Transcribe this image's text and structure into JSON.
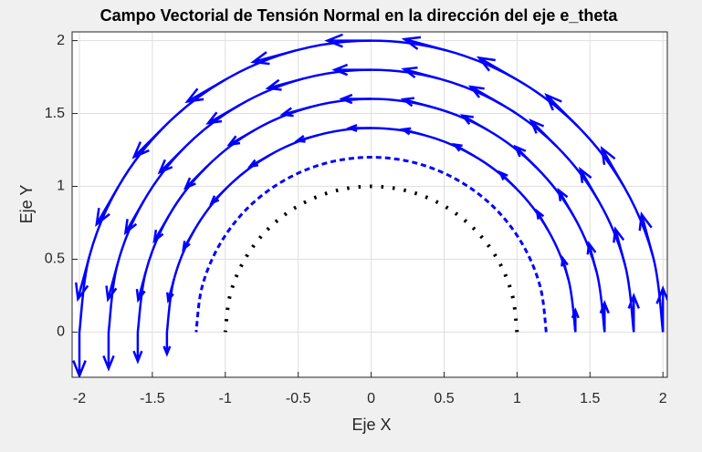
{
  "chart_data": {
    "type": "quiver",
    "title": "Campo Vectorial de Tensión Normal en la dirección del eje e_theta",
    "xlabel": "Eje X",
    "ylabel": "Eje Y",
    "xlim": [
      -2.05,
      2.03
    ],
    "ylim": [
      -0.31,
      2.06
    ],
    "xticks": [
      -2,
      -1.5,
      -1,
      -0.5,
      0,
      0.5,
      1,
      1.5,
      2
    ],
    "yticks": [
      0,
      0.5,
      1,
      1.5,
      2
    ],
    "grid": true,
    "series": [
      {
        "color": "#000000",
        "style": "dotted",
        "x": [
          1,
          0.966,
          0.866,
          0.707,
          0.5,
          0.259,
          0,
          -0.259,
          -0.5,
          -0.707,
          -0.866,
          -0.966,
          -1
        ],
        "y": [
          0,
          0.259,
          0.5,
          0.707,
          0.866,
          0.966,
          1,
          0.966,
          0.866,
          0.707,
          0.5,
          0.259,
          0
        ]
      },
      {
        "color": "#0000ff",
        "style": "dashed",
        "x": [
          1.2,
          1.159,
          1.039,
          0.849,
          0.6,
          0.311,
          0,
          -0.311,
          -0.6,
          -0.849,
          -1.039,
          -1.159,
          -1.2
        ],
        "y": [
          0,
          0.311,
          0.6,
          0.849,
          1.039,
          1.159,
          1.2,
          1.159,
          1.039,
          0.849,
          0.6,
          0.311,
          0
        ]
      },
      {
        "color": "#0000ff",
        "style": "solid",
        "x": [
          1.4,
          1.352,
          1.212,
          0.99,
          0.7,
          0.362,
          0,
          -0.362,
          -0.7,
          -0.99,
          -1.212,
          -1.352,
          -1.4
        ],
        "y": [
          0,
          0.362,
          0.7,
          0.99,
          1.212,
          1.352,
          1.4,
          1.352,
          1.212,
          0.99,
          0.7,
          0.362,
          0
        ],
        "u": [
          0,
          -0.039,
          -0.075,
          -0.106,
          -0.13,
          -0.145,
          -0.15,
          -0.145,
          -0.13,
          -0.106,
          -0.075,
          -0.039,
          0
        ],
        "v": [
          0.15,
          0.145,
          0.13,
          0.106,
          0.075,
          0.039,
          0,
          -0.039,
          -0.075,
          -0.106,
          -0.13,
          -0.145,
          -0.15
        ]
      },
      {
        "color": "#0000ff",
        "style": "solid",
        "x": [
          1.6,
          1.545,
          1.386,
          1.131,
          0.8,
          0.414,
          0,
          -0.414,
          -0.8,
          -1.131,
          -1.386,
          -1.545,
          -1.6
        ],
        "y": [
          0,
          0.414,
          0.8,
          1.131,
          1.386,
          1.545,
          1.6,
          1.545,
          1.386,
          1.131,
          0.8,
          0.414,
          0
        ],
        "u": [
          0,
          -0.052,
          -0.1,
          -0.141,
          -0.173,
          -0.193,
          -0.2,
          -0.193,
          -0.173,
          -0.141,
          -0.1,
          -0.052,
          0
        ],
        "v": [
          0.2,
          0.193,
          0.173,
          0.141,
          0.1,
          0.052,
          0,
          -0.052,
          -0.1,
          -0.141,
          -0.173,
          -0.193,
          -0.2
        ]
      },
      {
        "color": "#0000ff",
        "style": "solid",
        "x": [
          1.8,
          1.739,
          1.559,
          1.273,
          0.9,
          0.466,
          0,
          -0.466,
          -0.9,
          -1.273,
          -1.559,
          -1.739,
          -1.8
        ],
        "y": [
          0,
          0.466,
          0.9,
          1.273,
          1.559,
          1.739,
          1.8,
          1.739,
          1.559,
          1.273,
          0.9,
          0.466,
          0
        ],
        "u": [
          0,
          -0.065,
          -0.125,
          -0.177,
          -0.217,
          -0.241,
          -0.25,
          -0.241,
          -0.217,
          -0.177,
          -0.125,
          -0.065,
          0
        ],
        "v": [
          0.25,
          0.241,
          0.217,
          0.177,
          0.125,
          0.065,
          0,
          -0.065,
          -0.125,
          -0.177,
          -0.217,
          -0.241,
          -0.25
        ]
      },
      {
        "color": "#0000ff",
        "style": "solid",
        "x": [
          2,
          1.932,
          1.732,
          1.414,
          1,
          0.518,
          0,
          -0.518,
          -1,
          -1.414,
          -1.732,
          -1.932,
          -2
        ],
        "y": [
          0,
          0.518,
          1,
          1.414,
          1.732,
          1.932,
          2,
          1.932,
          1.732,
          1.414,
          1,
          0.518,
          0
        ],
        "u": [
          0,
          -0.078,
          -0.15,
          -0.212,
          -0.26,
          -0.29,
          -0.3,
          -0.29,
          -0.26,
          -0.212,
          -0.15,
          -0.078,
          0
        ],
        "v": [
          0.3,
          0.29,
          0.26,
          0.212,
          0.15,
          0.078,
          0,
          -0.078,
          -0.15,
          -0.212,
          -0.26,
          -0.29,
          -0.3
        ]
      }
    ]
  }
}
